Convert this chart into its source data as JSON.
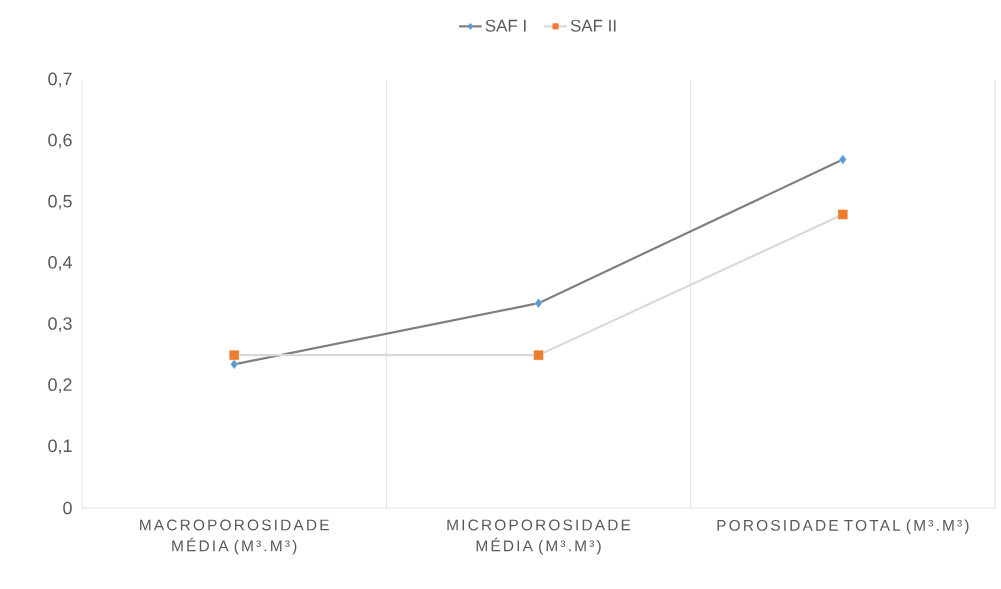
{
  "chart_data": {
    "type": "line",
    "categories": [
      "MACROPOROSIDADE MÉDIA (M³.M³)",
      "MICROPOROSIDADE MÉDIA (M³.M³)",
      "POROSIDADE TOTAL (M³.M³)"
    ],
    "series": [
      {
        "name": "SAF I",
        "color": "#7f7f7f",
        "colors": [
          "#5b9bd5",
          "#5b9bd5",
          "#5b9bd5"
        ],
        "marker": "diamond",
        "values": [
          0.235,
          0.335,
          0.57
        ]
      },
      {
        "name": "SAF II",
        "color": "#d9d9d9",
        "colors": [
          "#ed7d31",
          "#ed7d31",
          "#ed7d31"
        ],
        "marker": "square",
        "values": [
          0.25,
          0.25,
          0.48
        ]
      }
    ],
    "ylim": [
      0,
      0.7
    ],
    "yticks": [
      0,
      {
        "value": 0.1,
        "label": "0,1"
      },
      {
        "value": 0.2,
        "label": "0,2"
      },
      {
        "value": 0.3,
        "label": "0,3"
      },
      {
        "value": 0.4,
        "label": "0,4"
      },
      {
        "value": 0.5,
        "label": "0,5"
      },
      {
        "value": 0.6,
        "label": "0,6"
      },
      {
        "value": 0.7,
        "label": "0,7"
      }
    ],
    "grid": "x",
    "legend": "top",
    "line_style": "solid"
  }
}
